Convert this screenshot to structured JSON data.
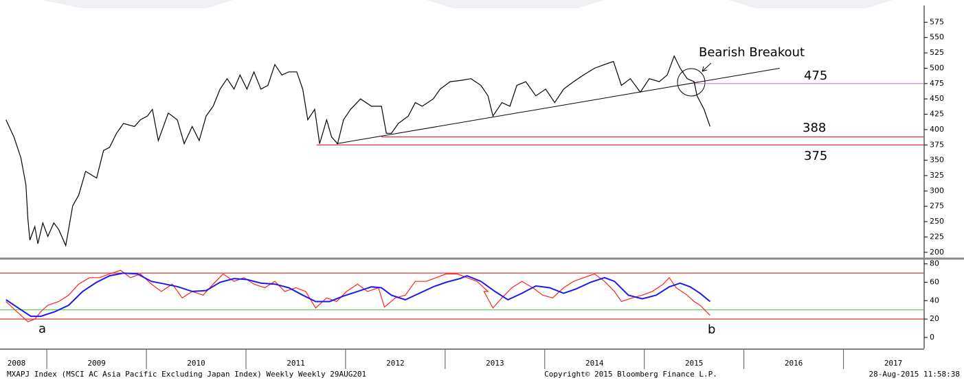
{
  "chart_data": [
    {
      "type": "line",
      "xlim": [
        2008.53,
        2017.81
      ],
      "ylim": [
        192,
        600
      ],
      "yticks": [
        200,
        225,
        250,
        275,
        300,
        325,
        350,
        375,
        400,
        425,
        450,
        475,
        500,
        525,
        550,
        575
      ],
      "series": [
        {
          "color": "#000000",
          "x": [
            2008.59,
            2008.67,
            2008.74,
            2008.79,
            2008.81,
            2008.83,
            2008.88,
            2008.91,
            2008.96,
            2009.01,
            2009.07,
            2009.12,
            2009.19,
            2009.26,
            2009.32,
            2009.39,
            2009.5,
            2009.57,
            2009.63,
            2009.7,
            2009.77,
            2009.88,
            2009.94,
            2010.01,
            2010.06,
            2010.12,
            2010.22,
            2010.31,
            2010.38,
            2010.46,
            2010.53,
            2010.6,
            2010.67,
            2010.74,
            2010.81,
            2010.88,
            2010.94,
            2011.01,
            2011.08,
            2011.15,
            2011.22,
            2011.29,
            2011.36,
            2011.43,
            2011.51,
            2011.57,
            2011.62,
            2011.69,
            2011.74,
            2011.81,
            2011.86,
            2011.92,
            2011.98,
            2012.05,
            2012.15,
            2012.26,
            2012.36,
            2012.41,
            2012.46,
            2012.53,
            2012.63,
            2012.7,
            2012.77,
            2012.88,
            2012.95,
            2013.05,
            2013.15,
            2013.26,
            2013.36,
            2013.43,
            2013.48,
            2013.57,
            2013.65,
            2013.72,
            2013.81,
            2013.91,
            2014.01,
            2014.1,
            2014.19,
            2014.29,
            2014.39,
            2014.5,
            2014.6,
            2014.69,
            2014.77,
            2014.86,
            2014.96,
            2015.05,
            2015.15,
            2015.23,
            2015.3,
            2015.36,
            2015.43,
            2015.5,
            2015.53,
            2015.6,
            2015.66
          ],
          "values": [
            416,
            388,
            354,
            310,
            254,
            220,
            242,
            214,
            248,
            226,
            248,
            237,
            211,
            276,
            293,
            332,
            321,
            366,
            371,
            394,
            410,
            405,
            416,
            422,
            433,
            382,
            427,
            416,
            377,
            405,
            382,
            422,
            438,
            466,
            483,
            466,
            489,
            466,
            494,
            466,
            472,
            506,
            489,
            494,
            494,
            466,
            416,
            433,
            377,
            416,
            388,
            377,
            416,
            433,
            450,
            438,
            438,
            394,
            394,
            410,
            422,
            444,
            438,
            450,
            466,
            478,
            480,
            483,
            472,
            455,
            422,
            444,
            438,
            472,
            478,
            455,
            466,
            444,
            466,
            478,
            489,
            500,
            506,
            511,
            472,
            483,
            461,
            483,
            478,
            489,
            520,
            500,
            483,
            478,
            455,
            433,
            405
          ]
        }
      ],
      "trendline": {
        "x": [
          2011.91,
          2016.36
        ],
        "values": [
          377,
          500
        ]
      },
      "levels": [
        {
          "value": 475,
          "label": "475",
          "color": "#c080c0",
          "from": 2015.5
        },
        {
          "value": 388,
          "label": "388",
          "color": "#e03030",
          "from": 2012.36
        },
        {
          "value": 375,
          "label": "375",
          "color": "#e03030",
          "from": 2011.71
        }
      ],
      "annotation": "Bearish Breakout"
    },
    {
      "type": "line",
      "xlim": [
        2008.53,
        2017.81
      ],
      "ylim": [
        -12,
        85
      ],
      "yticks": [
        0,
        20,
        40,
        60,
        80
      ],
      "series": [
        {
          "color": "#ff2020",
          "x": [
            2008.59,
            2008.7,
            2008.81,
            2008.88,
            2008.94,
            2009.01,
            2009.12,
            2009.22,
            2009.32,
            2009.43,
            2009.53,
            2009.63,
            2009.74,
            2009.84,
            2009.94,
            2010.05,
            2010.15,
            2010.26,
            2010.36,
            2010.46,
            2010.57,
            2010.67,
            2010.77,
            2010.88,
            2010.98,
            2011.08,
            2011.19,
            2011.29,
            2011.39,
            2011.5,
            2011.6,
            2011.7,
            2011.81,
            2011.91,
            2012.01,
            2012.12,
            2012.22,
            2012.33,
            2012.39,
            2012.5,
            2012.6,
            2012.7,
            2012.81,
            2012.91,
            2013.01,
            2013.12,
            2013.22,
            2013.32,
            2013.43,
            2013.39,
            2013.48,
            2013.57,
            2013.67,
            2013.77,
            2013.88,
            2013.98,
            2014.08,
            2014.19,
            2014.29,
            2014.39,
            2014.5,
            2014.6,
            2014.7,
            2014.77,
            2014.88,
            2014.98,
            2015.08,
            2015.19,
            2015.25,
            2015.32,
            2015.43,
            2015.5,
            2015.56,
            2015.66
          ],
          "values": [
            39,
            28,
            17,
            20,
            28,
            35,
            39,
            46,
            58,
            65,
            65,
            69,
            73,
            65,
            69,
            58,
            50,
            58,
            43,
            50,
            46,
            58,
            69,
            61,
            65,
            58,
            54,
            61,
            50,
            54,
            50,
            32,
            43,
            39,
            50,
            58,
            50,
            54,
            33,
            43,
            46,
            61,
            61,
            65,
            69,
            69,
            65,
            61,
            50,
            50,
            32,
            43,
            54,
            61,
            54,
            46,
            43,
            54,
            61,
            65,
            69,
            61,
            50,
            39,
            43,
            46,
            50,
            58,
            65,
            54,
            46,
            39,
            35,
            24
          ]
        },
        {
          "color": "#1a1aee",
          "x": [
            2008.59,
            2008.7,
            2008.84,
            2008.94,
            2009.08,
            2009.22,
            2009.36,
            2009.5,
            2009.63,
            2009.77,
            2009.91,
            2010.05,
            2010.19,
            2010.32,
            2010.46,
            2010.6,
            2010.74,
            2010.88,
            2011.01,
            2011.15,
            2011.29,
            2011.43,
            2011.57,
            2011.7,
            2011.84,
            2011.98,
            2012.12,
            2012.26,
            2012.36,
            2012.46,
            2012.6,
            2012.74,
            2012.88,
            2013.01,
            2013.15,
            2013.22,
            2013.36,
            2013.5,
            2013.63,
            2013.77,
            2013.91,
            2014.05,
            2014.19,
            2014.32,
            2014.46,
            2014.6,
            2014.7,
            2014.84,
            2014.98,
            2015.12,
            2015.25,
            2015.36,
            2015.46,
            2015.56,
            2015.66
          ],
          "values": [
            41,
            33,
            23,
            23,
            28,
            35,
            50,
            60,
            67,
            70,
            69,
            61,
            58,
            55,
            50,
            51,
            60,
            64,
            63,
            59,
            58,
            54,
            46,
            39,
            39,
            45,
            50,
            55,
            54,
            46,
            41,
            48,
            55,
            60,
            64,
            67,
            61,
            50,
            41,
            48,
            56,
            54,
            48,
            53,
            60,
            65,
            61,
            46,
            42,
            46,
            55,
            59,
            55,
            48,
            39
          ]
        }
      ],
      "levels": [
        {
          "value": 70,
          "color": "#e03030"
        },
        {
          "value": 30,
          "color": "#40d040"
        },
        {
          "value": 20,
          "color": "#e03030"
        }
      ],
      "labels": [
        "a",
        "b"
      ]
    }
  ],
  "xticks": [
    {
      "value": 2008,
      "label": "2008"
    },
    {
      "value": 2009,
      "label": "2009"
    },
    {
      "value": 2010,
      "label": "2010"
    },
    {
      "value": 2011,
      "label": "2011"
    },
    {
      "value": 2012,
      "label": "2012"
    },
    {
      "value": 2013,
      "label": "2013"
    },
    {
      "value": 2014,
      "label": "2014"
    },
    {
      "value": 2015,
      "label": "2015"
    },
    {
      "value": 2016,
      "label": "2016"
    },
    {
      "value": 2017,
      "label": "2017"
    }
  ],
  "footer": {
    "left": "MXAPJ Index (MSCI AC Asia Pacific Excluding Japan Index) Weekly  Weekly 29AUG201",
    "center": "Copyright© 2015 Bloomberg Finance L.P.",
    "right": "28-Aug-2015 11:58:38"
  }
}
